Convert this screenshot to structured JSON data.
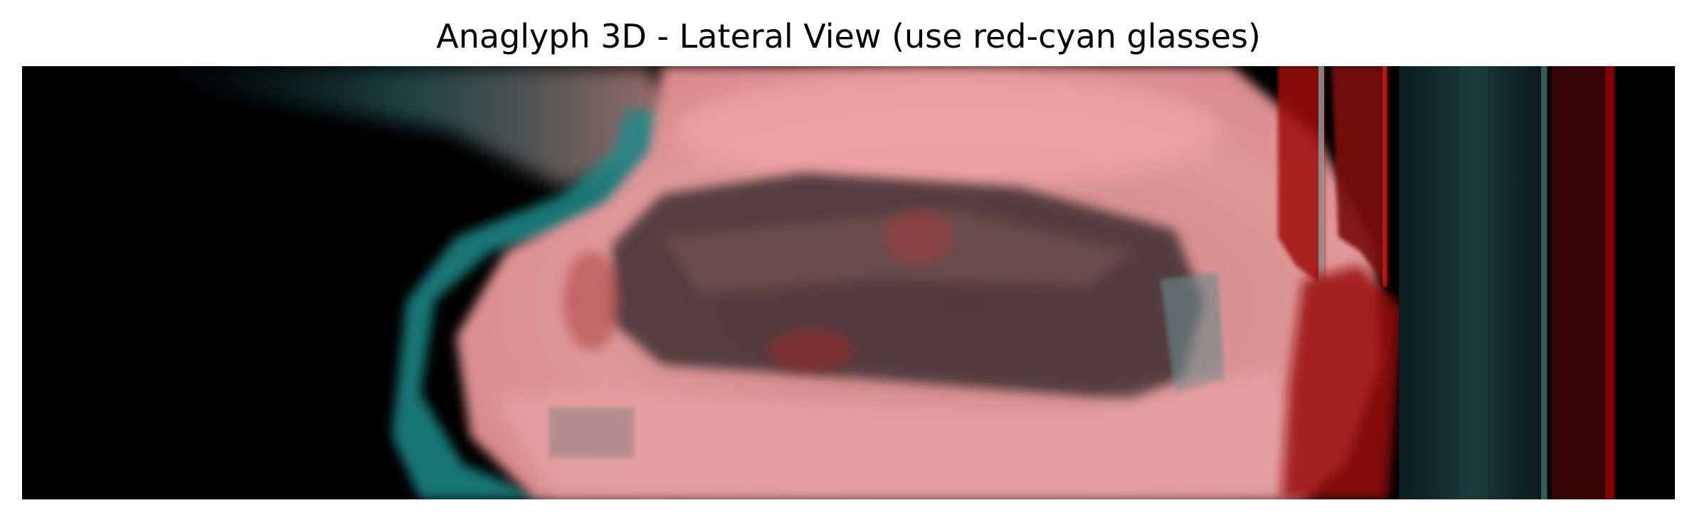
{
  "figure": {
    "title": "Anaglyph 3D - Lateral View (use red-cyan glasses)"
  },
  "image": {
    "description_colors": {
      "background": "#000000",
      "red_channel": "#e8898b",
      "cyan_channel": "#1f8f8f",
      "dark_interior": "#3a2a2c",
      "deep_red": "#8b0000"
    }
  }
}
